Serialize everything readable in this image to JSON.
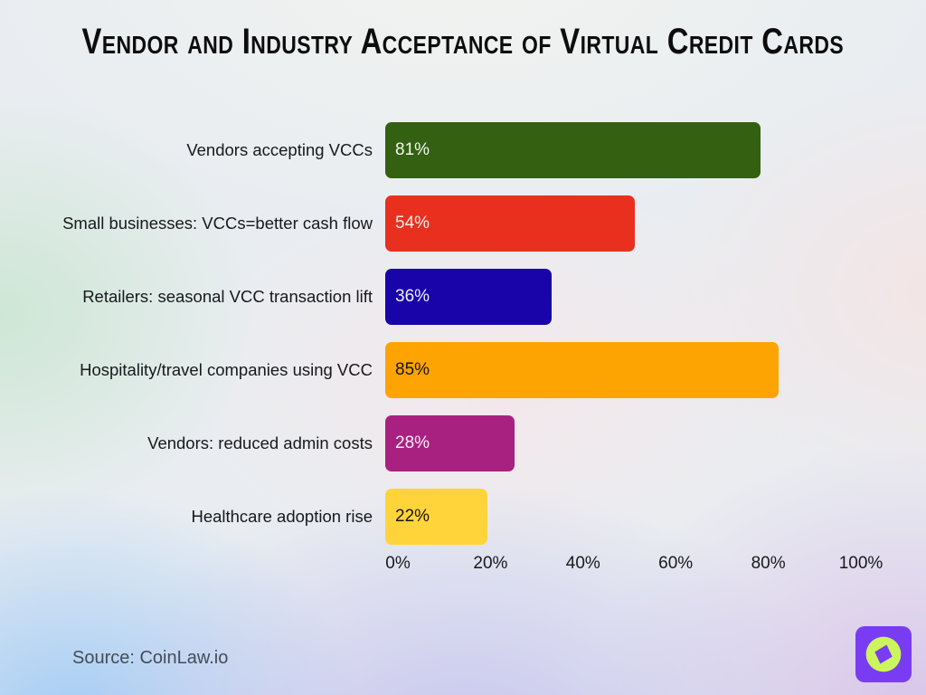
{
  "title": "Vendor and Industry Acceptance of Virtual Credit Cards",
  "source_text": "Source: CoinLaw.io",
  "logo": {
    "name": "coinlaw-compass-logo",
    "square_color": "#7a3cf2",
    "circle_color": "#ccf45c",
    "needle_color": "#7a3cf2"
  },
  "chart_data": {
    "type": "bar",
    "orientation": "horizontal",
    "title": "Vendor and Industry Acceptance of Virtual Credit Cards",
    "xlabel": "",
    "ylabel": "",
    "xlim": [
      0,
      100
    ],
    "grid": false,
    "legend": false,
    "categories": [
      "Vendors accepting VCCs",
      "Small businesses: VCCs=better cash flow",
      "Retailers: seasonal VCC transaction lift",
      "Hospitality/travel companies using VCC",
      "Vendors: reduced admin costs",
      "Healthcare adoption rise"
    ],
    "values": [
      81,
      54,
      36,
      85,
      28,
      22
    ],
    "value_labels": [
      "81%",
      "54%",
      "36%",
      "85%",
      "28%",
      "22%"
    ],
    "bar_colors": [
      "#336011",
      "#E9301F",
      "#1804A9",
      "#FDA402",
      "#A92180",
      "#FFD43B"
    ],
    "value_text_colors": [
      "#f2f6ee",
      "#fbeeec",
      "#eef0fb",
      "#1a1408",
      "#fbeef6",
      "#1a1408"
    ],
    "x_ticks": [
      "0%",
      "20%",
      "40%",
      "60%",
      "80%",
      "100%"
    ],
    "x_tick_values": [
      0,
      20,
      40,
      60,
      80,
      100
    ]
  }
}
